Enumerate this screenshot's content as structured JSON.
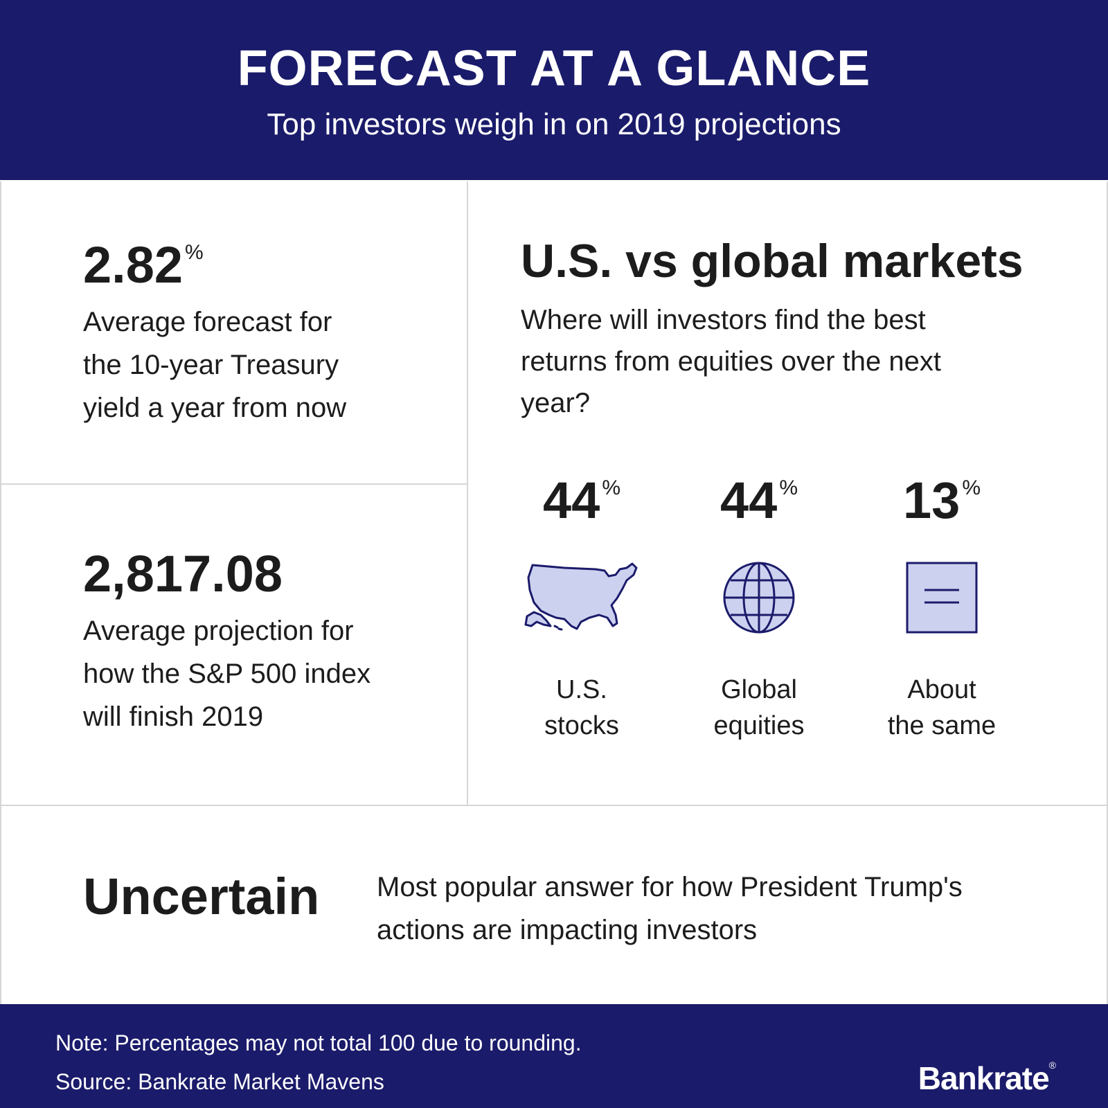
{
  "header": {
    "title": "FORECAST AT A GLANCE",
    "subtitle": "Top investors weigh in on 2019 projections"
  },
  "treasury": {
    "value": "2.82",
    "unit": "%",
    "description": "Average forecast for the 10-year Treasury yield a year from now"
  },
  "sp500": {
    "value": "2,817.08",
    "description": "Average projection for how the S&P 500 index will finish 2019"
  },
  "markets": {
    "title": "U.S. vs global markets",
    "question": "Where will investors find the best returns from equities over the next year?"
  },
  "uncertain": {
    "word": "Uncertain",
    "description": "Most popular answer for how President Trump's actions are impacting investors"
  },
  "footer": {
    "note": "Note: Percentages may not total 100 due to rounding.",
    "source": "Source: Bankrate Market Mavens",
    "brand": "Bankrate",
    "brand_mark": "®"
  },
  "colors": {
    "navy": "#1b1b6b",
    "icon_fill": "#ccd1ef",
    "text": "#1c1c1c"
  },
  "chart_data": {
    "type": "bar",
    "title": "U.S. vs global markets",
    "categories": [
      "U.S. stocks",
      "Global equities",
      "About the same"
    ],
    "labels": [
      [
        "U.S.",
        "stocks"
      ],
      [
        "Global",
        "equities"
      ],
      [
        "About",
        "the same"
      ]
    ],
    "values": [
      44,
      44,
      13
    ],
    "display_values": [
      "44",
      "44",
      "13"
    ],
    "unit": "%",
    "icons": [
      "usa-map-icon",
      "globe-icon",
      "equal-sign-icon"
    ]
  }
}
